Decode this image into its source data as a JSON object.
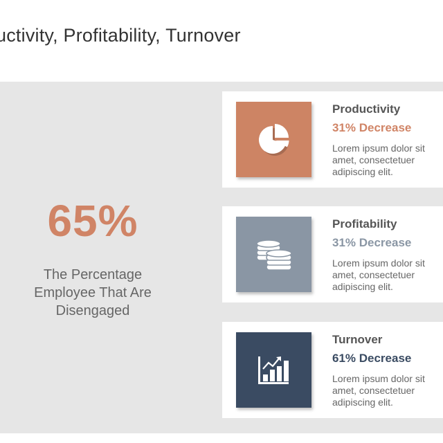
{
  "title": "uctivity, Profitability, Turnover",
  "stat": {
    "value": "65%",
    "caption_lines": [
      "The Percentage",
      "Employee That Are",
      "Disengaged"
    ]
  },
  "colors": {
    "panel": "#e6e6e6",
    "stat": "#d08466",
    "productivity": "#cd8464",
    "profitability": "#8a96a4",
    "turnover": "#3a4b62"
  },
  "cards": [
    {
      "icon": "pie-chart-icon",
      "title": "Productivity",
      "metric": "31% Decrease",
      "metric_color": "#d08466",
      "desc_lines": [
        "Lorem ipsum dolor sit",
        "amet, consectetuer",
        "adipiscing elit."
      ]
    },
    {
      "icon": "coins-icon",
      "title": "Profitability",
      "metric": "31% Decrease",
      "metric_color": "#8a96a4",
      "desc_lines": [
        "Lorem ipsum dolor sit",
        "amet, consectetuer",
        "adipiscing elit."
      ]
    },
    {
      "icon": "bar-chart-growth-icon",
      "title": "Turnover",
      "metric": "61% Decrease",
      "metric_color": "#3a4b62",
      "desc_lines": [
        "Lorem ipsum dolor sit",
        "amet, consectetuer",
        "adipiscing elit."
      ]
    }
  ]
}
